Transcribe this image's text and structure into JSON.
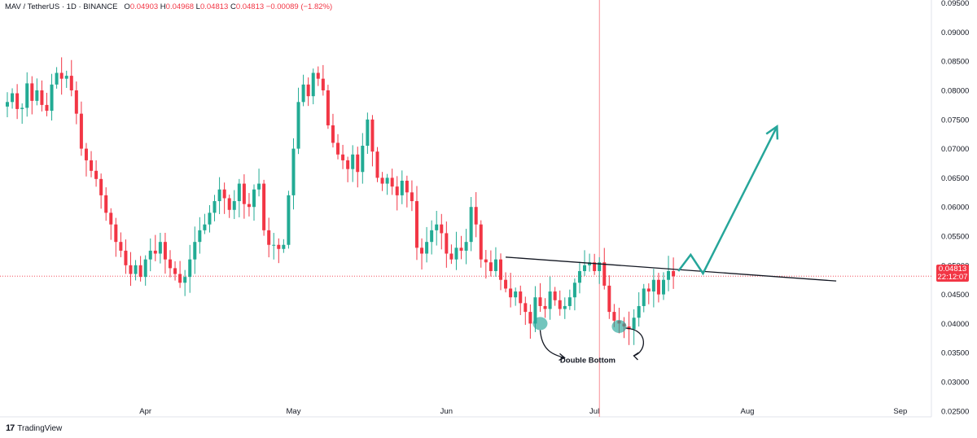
{
  "legend": {
    "symbol": "MAV / TetherUS · 1D · BINANCE",
    "o_label": "O",
    "o_value": "0.04903",
    "h_label": "H",
    "h_value": "0.04968",
    "l_label": "L",
    "l_value": "0.04813",
    "c_label": "C",
    "c_value": "0.04813",
    "change": "−0.00089 (−1.82%)"
  },
  "price_tag": {
    "price": "0.04813",
    "countdown": "22:12:07"
  },
  "footer": {
    "brand": "TradingView"
  },
  "colors": {
    "up": "#22ab94",
    "down": "#f23645",
    "projection": "#26a69a",
    "trendline": "#131722"
  },
  "chart_data": {
    "type": "candlestick",
    "y_axis": {
      "min": 0.024,
      "max": 0.0955,
      "ticks": [
        "0.02500",
        "0.03000",
        "0.03500",
        "0.04000",
        "0.04500",
        "0.05000",
        "0.05500",
        "0.06000",
        "0.06500",
        "0.07000",
        "0.07500",
        "0.08000",
        "0.08500",
        "0.09000",
        "0.09500"
      ]
    },
    "x_axis": {
      "labels": [
        {
          "label": "Apr",
          "bar": 28
        },
        {
          "label": "May",
          "bar": 58
        },
        {
          "label": "Jun",
          "bar": 89
        },
        {
          "label": "Jul",
          "bar": 119
        },
        {
          "label": "Aug",
          "bar": 150
        },
        {
          "label": "Sep",
          "bar": 181
        }
      ]
    },
    "closes": [
      0.078,
      0.0795,
      0.0768,
      0.077,
      0.0812,
      0.0782,
      0.08,
      0.0775,
      0.0765,
      0.081,
      0.083,
      0.082,
      0.0825,
      0.08,
      0.076,
      0.07,
      0.068,
      0.0662,
      0.0648,
      0.062,
      0.059,
      0.057,
      0.054,
      0.0525,
      0.05,
      0.0485,
      0.05,
      0.048,
      0.051,
      0.0525,
      0.052,
      0.054,
      0.051,
      0.0495,
      0.0485,
      0.047,
      0.048,
      0.051,
      0.054,
      0.056,
      0.057,
      0.059,
      0.061,
      0.063,
      0.0615,
      0.0595,
      0.061,
      0.064,
      0.0605,
      0.06,
      0.063,
      0.064,
      0.056,
      0.0535,
      0.0535,
      0.0528,
      0.0535,
      0.062,
      0.07,
      0.078,
      0.081,
      0.079,
      0.083,
      0.082,
      0.08,
      0.074,
      0.071,
      0.069,
      0.068,
      0.0665,
      0.069,
      0.066,
      0.0705,
      0.075,
      0.0695,
      0.065,
      0.064,
      0.065,
      0.0635,
      0.062,
      0.0645,
      0.0625,
      0.061,
      0.053,
      0.052,
      0.054,
      0.056,
      0.057,
      0.0555,
      0.052,
      0.051,
      0.053,
      0.0525,
      0.054,
      0.06,
      0.057,
      0.051,
      0.0505,
      0.049,
      0.051,
      0.0475,
      0.046,
      0.0445,
      0.0455,
      0.0435,
      0.042,
      0.04,
      0.0445,
      0.043,
      0.0425,
      0.0455,
      0.044,
      0.0425,
      0.043,
      0.0445,
      0.047,
      0.049,
      0.05,
      0.0505,
      0.049,
      0.0505,
      0.0465,
      0.042,
      0.0405,
      0.04,
      0.0395,
      0.039,
      0.041,
      0.043,
      0.046,
      0.0455,
      0.0475,
      0.045,
      0.0475,
      0.049,
      0.0481
    ],
    "trendline": [
      {
        "bar": 101,
        "price": 0.0514
      },
      {
        "bar": 168,
        "price": 0.0473
      }
    ],
    "projection": [
      {
        "bar": 136,
        "price": 0.049
      },
      {
        "bar": 138.5,
        "price": 0.0518
      },
      {
        "bar": 141,
        "price": 0.0486
      },
      {
        "bar": 156,
        "price": 0.0738
      }
    ],
    "cursor_bar": 120,
    "current_price": 0.04813,
    "bottoms": [
      {
        "bar": 108,
        "price": 0.04
      },
      {
        "bar": 124,
        "price": 0.0395
      }
    ],
    "annotation": "Double Bottom"
  }
}
